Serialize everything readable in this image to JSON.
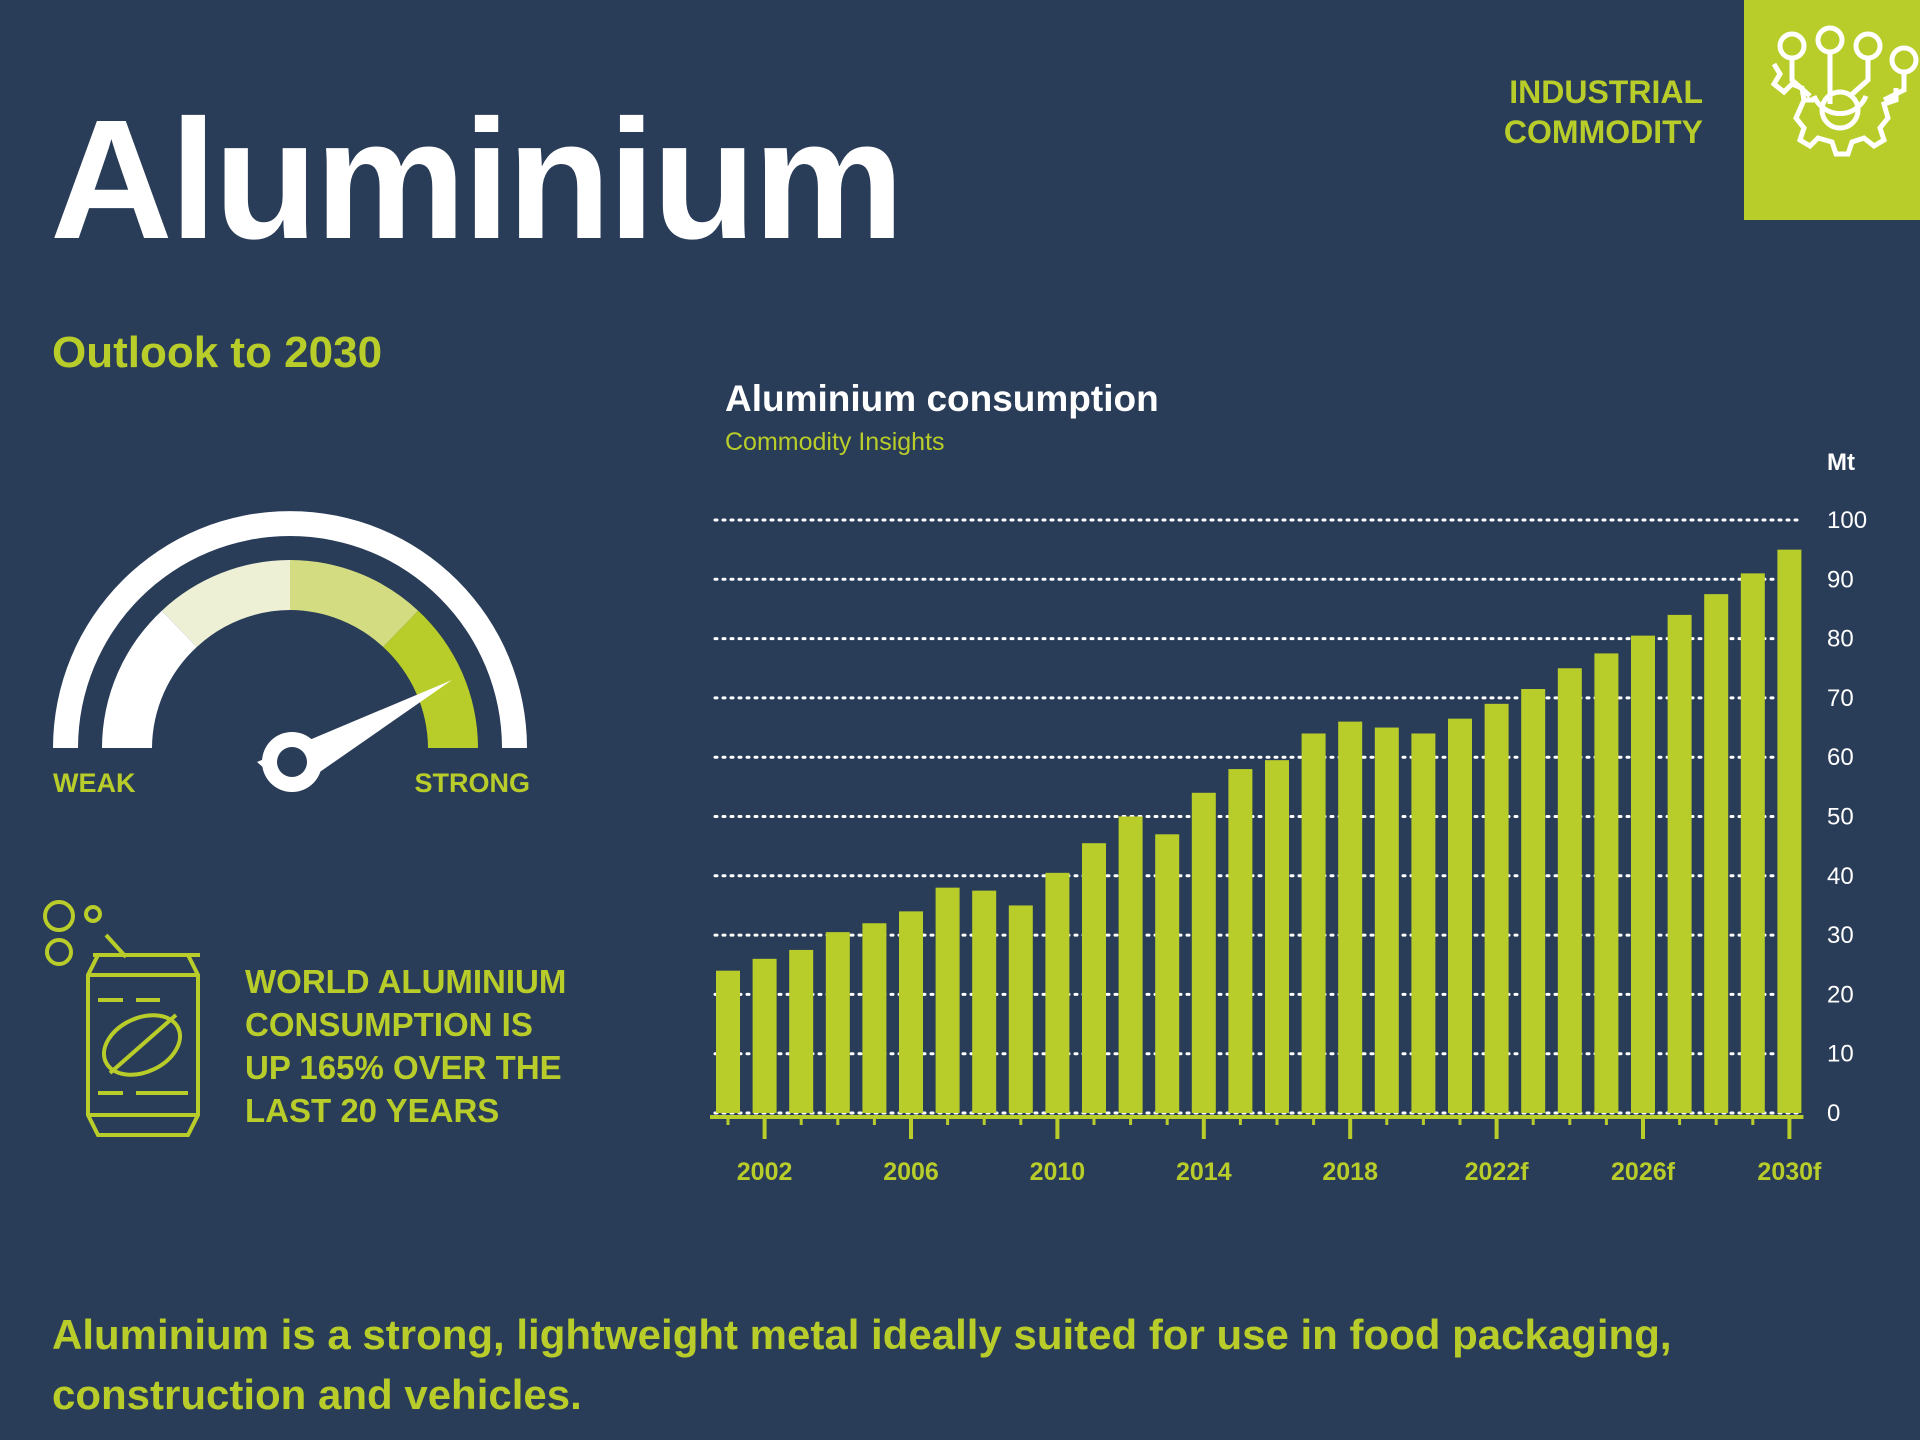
{
  "header": {
    "title": "Aluminium",
    "category_line1": "INDUSTRIAL",
    "category_line2": "COMMODITY",
    "badge_icon": "gear-circuit-icon"
  },
  "outlook": {
    "heading": "Outlook to 2030",
    "gauge": {
      "weak_label": "WEAK",
      "strong_label": "STRONG",
      "level": 0.8
    }
  },
  "stat": {
    "icon": "soda-can-icon",
    "line1": "WORLD ALUMINIUM",
    "line2": "CONSUMPTION IS",
    "line3": "UP 165% OVER THE",
    "line4": "LAST 20 YEARS"
  },
  "footer": {
    "text": "Aluminium is a strong, lightweight metal ideally suited for use in food packaging, construction and vehicles."
  },
  "colors": {
    "background": "#293c58",
    "accent": "#b9cd2a",
    "text": "#ffffff"
  },
  "chart_data": {
    "type": "bar",
    "title": "Aluminium consumption",
    "subtitle": "Commodity Insights",
    "ylabel": "Mt",
    "ylim": [
      0,
      100
    ],
    "yticks": [
      0,
      10,
      20,
      30,
      40,
      50,
      60,
      70,
      80,
      90,
      100
    ],
    "grid": true,
    "categories": [
      "2001",
      "2002",
      "2003",
      "2004",
      "2005",
      "2006",
      "2007",
      "2008",
      "2009",
      "2010",
      "2011",
      "2012",
      "2013",
      "2014",
      "2015",
      "2016",
      "2017",
      "2018",
      "2019",
      "2020",
      "2021",
      "2022f",
      "2023f",
      "2024f",
      "2025f",
      "2026f",
      "2027f",
      "2028f",
      "2029f",
      "2030f"
    ],
    "tick_labels": [
      {
        "category": "2002",
        "label": "2002"
      },
      {
        "category": "2006",
        "label": "2006"
      },
      {
        "category": "2010",
        "label": "2010"
      },
      {
        "category": "2014",
        "label": "2014"
      },
      {
        "category": "2018",
        "label": "2018"
      },
      {
        "category": "2022f",
        "label": "2022f"
      },
      {
        "category": "2026f",
        "label": "2026f"
      },
      {
        "category": "2030f",
        "label": "2030f"
      }
    ],
    "values": [
      24,
      26,
      27.5,
      30.5,
      32,
      34,
      38,
      37.5,
      35,
      40.5,
      45.5,
      50,
      47,
      54,
      58,
      59.5,
      64,
      66,
      65,
      64,
      66.5,
      69,
      71.5,
      75,
      77.5,
      80.5,
      84,
      87.5,
      91,
      95
    ]
  }
}
